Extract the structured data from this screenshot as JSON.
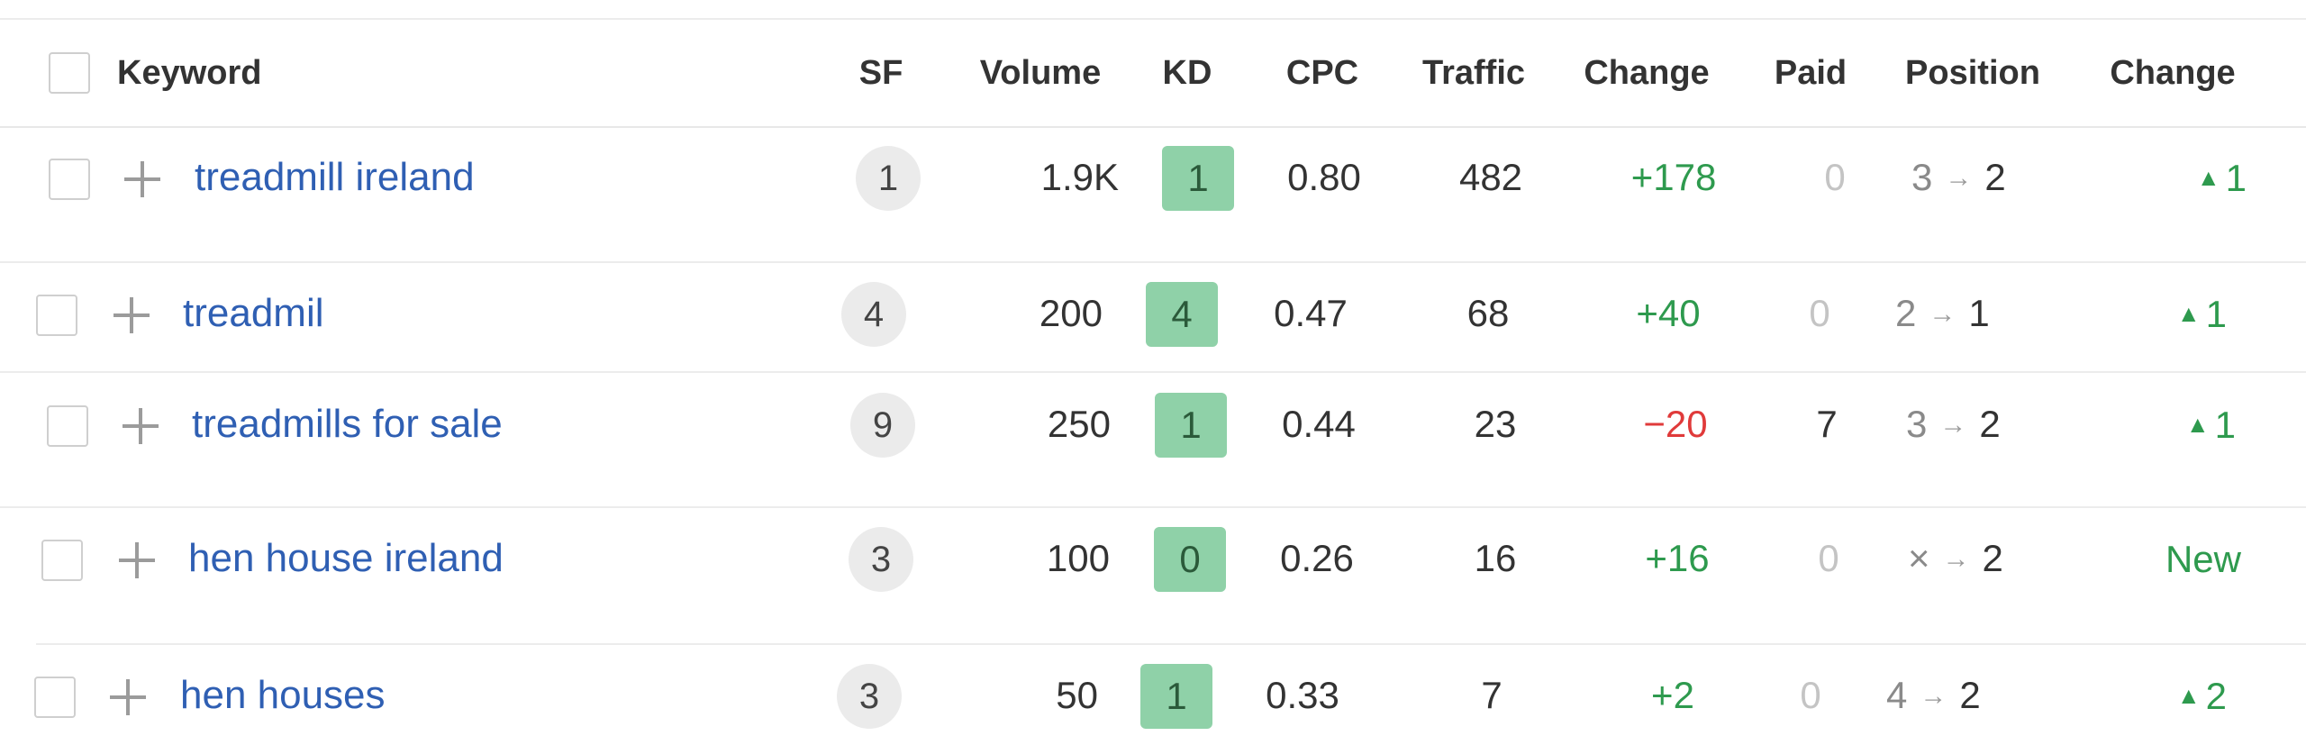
{
  "columns": {
    "keyword": "Keyword",
    "sf": "SF",
    "volume": "Volume",
    "kd": "KD",
    "cpc": "CPC",
    "traffic": "Traffic",
    "change": "Change",
    "paid": "Paid",
    "position": "Position",
    "position_change": "Change"
  },
  "rows": [
    {
      "keyword": "treadmill ireland",
      "sf": "1",
      "volume": "1.9K",
      "kd": "1",
      "cpc": "0.80",
      "traffic": "482",
      "change": "+178",
      "paid": "0",
      "pos_from": "3",
      "pos_to": "2",
      "pos_change": "1",
      "pos_change_arrow": "▲"
    },
    {
      "keyword": "treadmil",
      "sf": "4",
      "volume": "200",
      "kd": "4",
      "cpc": "0.47",
      "traffic": "68",
      "change": "+40",
      "paid": "0",
      "pos_from": "2",
      "pos_to": "1",
      "pos_change": "1",
      "pos_change_arrow": "▲"
    },
    {
      "keyword": "treadmills for sale",
      "sf": "9",
      "volume": "250",
      "kd": "1",
      "cpc": "0.44",
      "traffic": "23",
      "change": "−20",
      "paid": "7",
      "pos_from": "3",
      "pos_to": "2",
      "pos_change": "1",
      "pos_change_arrow": "▲"
    },
    {
      "keyword": "hen house ireland",
      "sf": "3",
      "volume": "100",
      "kd": "0",
      "cpc": "0.26",
      "traffic": "16",
      "change": "+16",
      "paid": "0",
      "pos_from": "×",
      "pos_to": "2",
      "pos_change": "New",
      "pos_change_arrow": ""
    },
    {
      "keyword": "hen houses",
      "sf": "3",
      "volume": "50",
      "kd": "1",
      "cpc": "0.33",
      "traffic": "7",
      "change": "+2",
      "paid": "0",
      "pos_from": "4",
      "pos_to": "2",
      "pos_change": "2",
      "pos_change_arrow": "▲"
    }
  ],
  "position_arrow": "→",
  "colors": {
    "link": "#2f5fb3",
    "positive": "#2e9a4e",
    "negative": "#e03a3a",
    "kd_badge": "#8fd1a8",
    "sf_badge": "#ebebeb"
  }
}
